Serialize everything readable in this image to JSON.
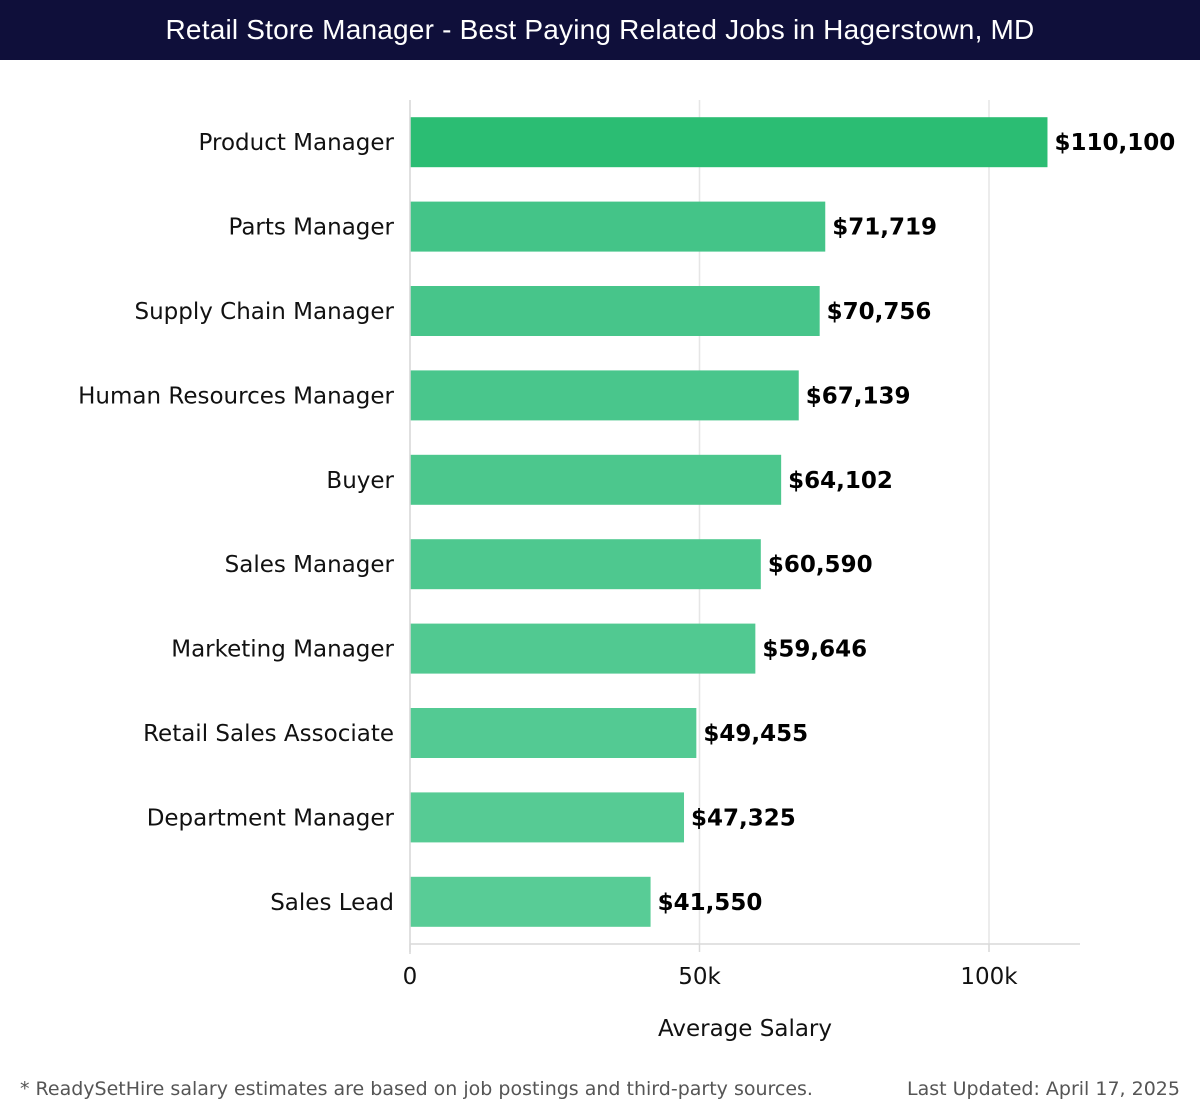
{
  "header": {
    "title": "Retail Store Manager - Best Paying Related Jobs in Hagerstown, MD"
  },
  "chart_data": {
    "type": "bar",
    "orientation": "horizontal",
    "categories": [
      "Product Manager",
      "Parts Manager",
      "Supply Chain Manager",
      "Human Resources Manager",
      "Buyer",
      "Sales Manager",
      "Marketing Manager",
      "Retail Sales Associate",
      "Department Manager",
      "Sales Lead"
    ],
    "values": [
      110100,
      71719,
      70756,
      67139,
      64102,
      60590,
      59646,
      49455,
      47325,
      41550
    ],
    "value_labels": [
      "$110,100",
      "$71,719",
      "$70,756",
      "$67,139",
      "$64,102",
      "$60,590",
      "$59,646",
      "$49,455",
      "$47,325",
      "$41,550"
    ],
    "xlabel": "Average Salary",
    "ylabel": "",
    "xlim": [
      0,
      116000
    ],
    "xticks": [
      0,
      50000,
      100000
    ],
    "xtick_labels": [
      "0",
      "50k",
      "100k"
    ],
    "grid": "vertical",
    "colors": {
      "top_bar": "#2bbd73",
      "bar_dark": "#44c488",
      "bar_light": "#58cc96",
      "grid": "#e6e6e6",
      "axis": "#d9d9d9"
    }
  },
  "footer": {
    "note": "* ReadySetHire salary estimates are based on job postings and third-party sources.",
    "updated": "Last Updated: April 17, 2025"
  }
}
